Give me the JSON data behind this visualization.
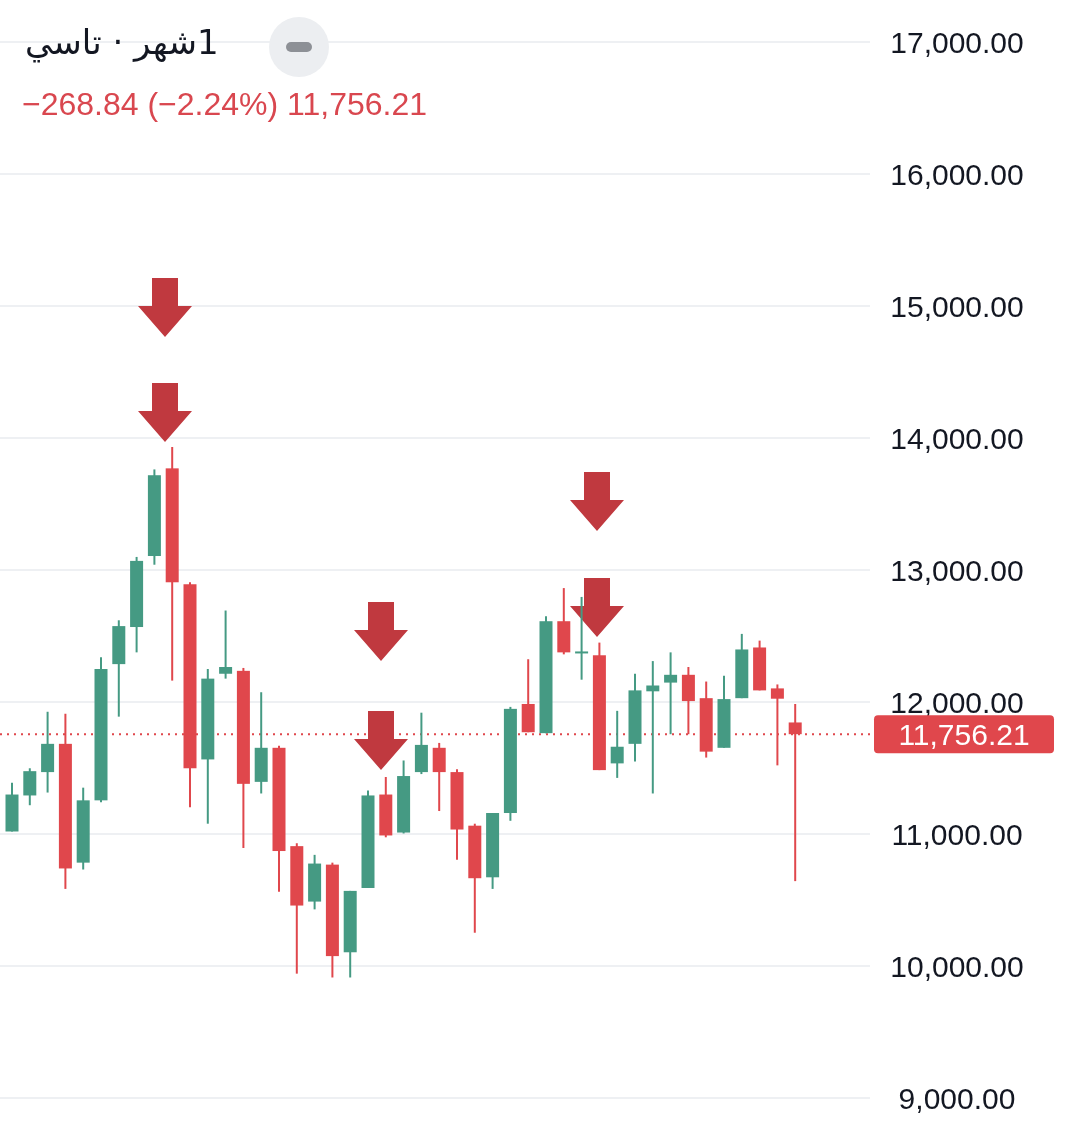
{
  "chart_data": {
    "type": "candlestick",
    "title": "1شهر · تاسي",
    "subtitle": "−268.84 (−2.24%)  11,756.21",
    "categories": [
      null,
      null,
      null,
      null,
      null,
      null,
      null,
      null,
      null,
      null,
      null,
      null,
      null,
      null,
      null,
      null,
      null,
      null,
      null,
      null,
      null,
      null,
      null,
      null,
      null,
      null,
      null,
      null,
      null,
      null,
      null,
      null,
      null,
      null,
      null,
      null,
      null,
      null,
      null,
      null,
      null,
      null,
      null,
      null,
      null
    ],
    "ohlc": [
      [
        11019,
        11388,
        11019,
        11299
      ],
      [
        11292,
        11498,
        11218,
        11476
      ],
      [
        11469,
        11926,
        11314,
        11683
      ],
      [
        11683,
        11911,
        10584,
        10739
      ],
      [
        10783,
        11351,
        10731,
        11255
      ],
      [
        11255,
        12339,
        11240,
        12250
      ],
      [
        12287,
        12619,
        11889,
        12575
      ],
      [
        12568,
        13099,
        12376,
        13069
      ],
      [
        13106,
        13762,
        13040,
        13718
      ],
      [
        13770,
        13932,
        12162,
        12907
      ],
      [
        12892,
        12907,
        11203,
        11498
      ],
      [
        11565,
        12250,
        11078,
        12177
      ],
      [
        12214,
        12693,
        12177,
        12265
      ],
      [
        12236,
        12258,
        10894,
        11380
      ],
      [
        11395,
        12074,
        11307,
        11653
      ],
      [
        11653,
        11668,
        10562,
        10871
      ],
      [
        10908,
        10930,
        9942,
        10458
      ],
      [
        10488,
        10842,
        10429,
        10776
      ],
      [
        10768,
        10783,
        9913,
        10075
      ],
      [
        10104,
        10569,
        9913,
        10569
      ],
      [
        10591,
        11329,
        10591,
        11292
      ],
      [
        11299,
        11432,
        10975,
        10989
      ],
      [
        11011,
        11557,
        11004,
        11439
      ],
      [
        11469,
        11919,
        11454,
        11675
      ],
      [
        11653,
        11690,
        11174,
        11469
      ],
      [
        11469,
        11491,
        10805,
        11034
      ],
      [
        11063,
        11078,
        10252,
        10665
      ],
      [
        10672,
        11159,
        10584,
        11159
      ],
      [
        11159,
        11963,
        11100,
        11948
      ],
      [
        11985,
        12324,
        11771,
        11771
      ],
      [
        11764,
        12649,
        11764,
        12612
      ],
      [
        12612,
        12863,
        12361,
        12376
      ],
      [
        12376,
        12796,
        12169,
        12383
      ],
      [
        12354,
        12450,
        11484,
        11484
      ],
      [
        11535,
        11933,
        11425,
        11661
      ],
      [
        11683,
        12214,
        11550,
        12088
      ],
      [
        12081,
        12310,
        11307,
        12125
      ],
      [
        12147,
        12376,
        11756,
        12206
      ],
      [
        12206,
        12265,
        11756,
        12007
      ],
      [
        12029,
        12155,
        11579,
        11624
      ],
      [
        11653,
        12199,
        11653,
        12022
      ],
      [
        12029,
        12516,
        12029,
        12398
      ],
      [
        12413,
        12465,
        12088,
        12088
      ],
      [
        12103,
        12133,
        11520,
        12025
      ],
      [
        11845,
        11985,
        10643,
        11756.21
      ]
    ],
    "colors": [
      "#459a83",
      "#459a83",
      "#459a83",
      "#e0474c",
      "#459a83",
      "#459a83",
      "#459a83",
      "#459a83",
      "#459a83",
      "#e0474c",
      "#e0474c",
      "#459a83",
      "#459a83",
      "#e0474c",
      "#459a83",
      "#e0474c",
      "#e0474c",
      "#459a83",
      "#e0474c",
      "#459a83",
      "#459a83",
      "#e0474c",
      "#459a83",
      "#459a83",
      "#e0474c",
      "#e0474c",
      "#e0474c",
      "#459a83",
      "#459a83",
      "#e0474c",
      "#459a83",
      "#e0474c",
      "#459a83",
      "#e0474c",
      "#459a83",
      "#459a83",
      "#459a83",
      "#459a83",
      "#e0474c",
      "#e0474c",
      "#459a83",
      "#459a83",
      "#e0474c",
      "#e0474c",
      "#e0474c"
    ],
    "ylim": [
      9000,
      17000
    ],
    "yticks": [
      {
        "value": 9000,
        "label": "9,000.00"
      },
      {
        "value": 10000,
        "label": "10,000.00"
      },
      {
        "value": 11000,
        "label": "11,000.00"
      },
      {
        "value": 12000,
        "label": "12,000.00"
      },
      {
        "value": 13000,
        "label": "13,000.00"
      },
      {
        "value": 14000,
        "label": "14,000.00"
      },
      {
        "value": 15000,
        "label": "15,000.00"
      },
      {
        "value": 16000,
        "label": "16,000.00"
      },
      {
        "value": 17000,
        "label": "17,000.00"
      }
    ],
    "ref_lines": [
      {
        "axis": "y",
        "value": 11756.21,
        "label": "11,756.21",
        "color": "#e0474c",
        "line_style": "dotted"
      }
    ],
    "grid": "y"
  }
}
